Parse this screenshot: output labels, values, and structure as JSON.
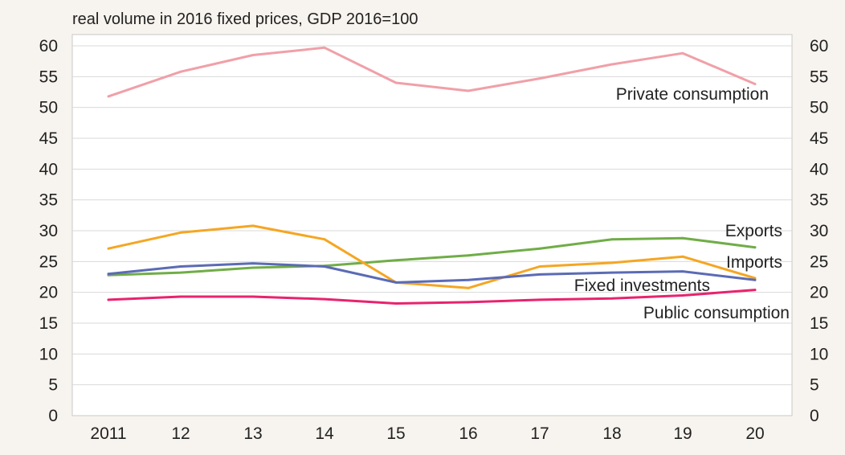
{
  "chart_data": {
    "type": "line",
    "title": "real volume in 2016 fixed prices, GDP 2016=100",
    "categories": [
      "2011",
      "12",
      "13",
      "14",
      "15",
      "16",
      "17",
      "18",
      "19",
      "20"
    ],
    "ylim": [
      0,
      60
    ],
    "yticks": [
      0,
      5,
      10,
      15,
      20,
      25,
      30,
      35,
      40,
      45,
      50,
      55,
      60
    ],
    "y_axis_sides": "left-and-right",
    "grid": true,
    "legend": "none (inline series labels)",
    "series": [
      {
        "name": "Private consumption",
        "color": "#f0a0a8",
        "values": [
          51.8,
          55.8,
          58.5,
          59.7,
          54.0,
          52.7,
          54.7,
          57.0,
          58.8,
          53.8
        ]
      },
      {
        "name": "Exports",
        "color": "#70ad47",
        "values": [
          22.8,
          23.2,
          24.0,
          24.3,
          25.2,
          26.0,
          27.1,
          28.6,
          28.8,
          27.3
        ]
      },
      {
        "name": "Imports",
        "color": "#f5a623",
        "values": [
          27.1,
          29.7,
          30.8,
          28.6,
          21.6,
          20.7,
          24.2,
          24.8,
          25.8,
          22.3
        ]
      },
      {
        "name": "Fixed investments",
        "color": "#5b6bb5",
        "values": [
          23.0,
          24.2,
          24.7,
          24.2,
          21.6,
          22.0,
          22.9,
          23.2,
          23.4,
          22.0
        ]
      },
      {
        "name": "Public consumption",
        "color": "#e8236f",
        "values": [
          18.8,
          19.3,
          19.3,
          18.9,
          18.2,
          18.4,
          18.8,
          19.0,
          19.5,
          20.4
        ]
      }
    ]
  }
}
